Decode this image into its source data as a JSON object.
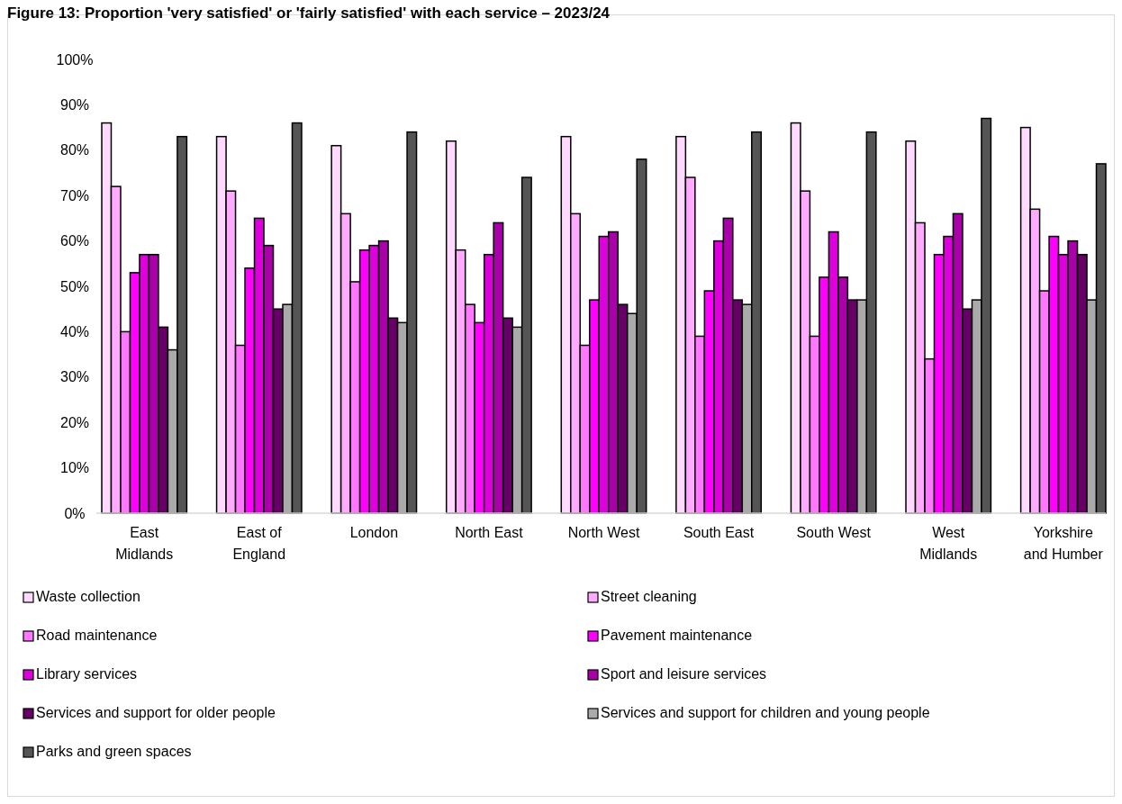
{
  "chart_data": {
    "type": "bar",
    "title": "Figure 13: Proportion 'very satisfied' or 'fairly satisfied' with each service – 2023/24",
    "categories": [
      "East Midlands",
      "East of England",
      "London",
      "North East",
      "North West",
      "South East",
      "South West",
      "West Midlands",
      "Yorkshire and Humber"
    ],
    "series": [
      {
        "name": "Waste collection",
        "color": "#ffd9ff",
        "values": [
          86,
          83,
          81,
          82,
          83,
          83,
          86,
          82,
          85
        ]
      },
      {
        "name": "Street cleaning",
        "color": "#ffaaff",
        "values": [
          72,
          71,
          66,
          58,
          66,
          74,
          71,
          64,
          67
        ]
      },
      {
        "name": "Road maintenance",
        "color": "#ff77ff",
        "values": [
          40,
          37,
          51,
          46,
          37,
          39,
          39,
          34,
          49
        ]
      },
      {
        "name": "Pavement maintenance",
        "color": "#ff00ff",
        "values": [
          53,
          54,
          58,
          42,
          47,
          49,
          52,
          57,
          61
        ]
      },
      {
        "name": "Library services",
        "color": "#dd00dd",
        "values": [
          57,
          65,
          59,
          57,
          61,
          60,
          62,
          61,
          57
        ]
      },
      {
        "name": "Sport and leisure services",
        "color": "#aa00aa",
        "values": [
          57,
          59,
          60,
          64,
          62,
          65,
          52,
          66,
          60
        ]
      },
      {
        "name": "Services and support for older people",
        "color": "#660066",
        "values": [
          41,
          45,
          43,
          43,
          46,
          47,
          47,
          45,
          57
        ]
      },
      {
        "name": "Services and support for children and young people",
        "color": "#aaaaaa",
        "values": [
          36,
          46,
          42,
          41,
          44,
          46,
          47,
          47,
          47
        ]
      },
      {
        "name": "Parks and green spaces",
        "color": "#555555",
        "values": [
          83,
          86,
          84,
          74,
          78,
          84,
          84,
          87,
          77
        ]
      }
    ],
    "ylim": [
      0,
      100
    ],
    "yticks": [
      {
        "value": 0,
        "label": "0%"
      },
      {
        "value": 10,
        "label": "10%"
      },
      {
        "value": 20,
        "label": "20%"
      },
      {
        "value": 30,
        "label": "30%"
      },
      {
        "value": 40,
        "label": "40%"
      },
      {
        "value": 50,
        "label": "50%"
      },
      {
        "value": 60,
        "label": "60%"
      },
      {
        "value": 70,
        "label": "70%"
      },
      {
        "value": 80,
        "label": "80%"
      },
      {
        "value": 90,
        "label": "90%"
      },
      {
        "value": 100,
        "label": "100%"
      }
    ],
    "legend": "bottom"
  }
}
